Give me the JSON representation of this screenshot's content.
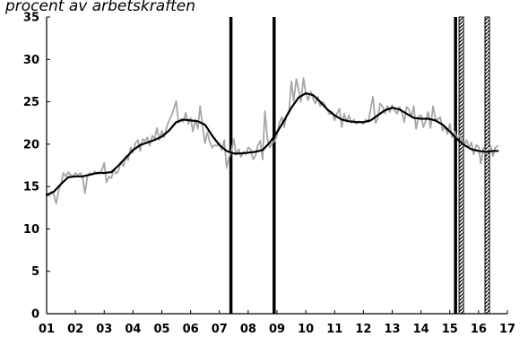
{
  "chart_data": {
    "type": "line",
    "title": "procent av arbetskraften",
    "xlabel": "",
    "ylabel": "",
    "ylim": [
      0,
      35
    ],
    "yticks": [
      0,
      5,
      10,
      15,
      20,
      25,
      30,
      35
    ],
    "xlim": [
      2001,
      2017
    ],
    "xtick_labels": [
      "01",
      "02",
      "03",
      "04",
      "05",
      "06",
      "07",
      "08",
      "09",
      "10",
      "11",
      "12",
      "13",
      "14",
      "15",
      "16",
      "17"
    ],
    "grid": false,
    "legend": "none",
    "colors": {
      "raw": "#a6a6a6",
      "trend": "#000000",
      "markers": "#000000"
    },
    "series": [
      {
        "role": "raw",
        "x": [
          2001.0,
          2001.08,
          2001.17,
          2001.25,
          2001.33,
          2001.42,
          2001.5,
          2001.58,
          2001.67,
          2001.75,
          2001.83,
          2001.92,
          2002.0,
          2002.08,
          2002.17,
          2002.25,
          2002.33,
          2002.42,
          2002.5,
          2002.58,
          2002.67,
          2002.75,
          2002.83,
          2002.92,
          2003.0,
          2003.08,
          2003.17,
          2003.25,
          2003.33,
          2003.42,
          2003.5,
          2003.58,
          2003.67,
          2003.75,
          2003.83,
          2003.92,
          2004.0,
          2004.08,
          2004.17,
          2004.25,
          2004.33,
          2004.42,
          2004.5,
          2004.58,
          2004.67,
          2004.75,
          2004.83,
          2004.92,
          2005.0,
          2005.08,
          2005.17,
          2005.25,
          2005.33,
          2005.42,
          2005.5,
          2005.58,
          2005.67,
          2005.75,
          2005.83,
          2005.92,
          2006.0,
          2006.08,
          2006.17,
          2006.25,
          2006.33,
          2006.42,
          2006.5,
          2006.58,
          2006.67,
          2006.75,
          2006.83,
          2006.92,
          2007.0,
          2007.08,
          2007.17,
          2007.25,
          2007.33,
          2007.42,
          2007.5,
          2007.58,
          2007.67,
          2007.75,
          2007.83,
          2007.92,
          2008.0,
          2008.08,
          2008.17,
          2008.25,
          2008.33,
          2008.42,
          2008.5,
          2008.58,
          2008.67,
          2008.75,
          2008.83,
          2008.92,
          2009.0,
          2009.08,
          2009.17,
          2009.25,
          2009.33,
          2009.42,
          2009.5,
          2009.58,
          2009.67,
          2009.75,
          2009.83,
          2009.92,
          2010.0,
          2010.08,
          2010.17,
          2010.25,
          2010.33,
          2010.42,
          2010.5,
          2010.58,
          2010.67,
          2010.75,
          2010.83,
          2010.92,
          2011.0,
          2011.08,
          2011.17,
          2011.25,
          2011.33,
          2011.42,
          2011.5,
          2011.58,
          2011.67,
          2011.75,
          2011.83,
          2011.92,
          2012.0,
          2012.08,
          2012.17,
          2012.25,
          2012.33,
          2012.42,
          2012.5,
          2012.58,
          2012.67,
          2012.75,
          2012.83,
          2012.92,
          2013.0,
          2013.08,
          2013.17,
          2013.25,
          2013.33,
          2013.42,
          2013.5,
          2013.58,
          2013.67,
          2013.75,
          2013.83,
          2013.92,
          2014.0,
          2014.08,
          2014.17,
          2014.25,
          2014.33,
          2014.42,
          2014.5,
          2014.58,
          2014.67,
          2014.75,
          2014.83,
          2014.92,
          2015.0,
          2015.08,
          2015.17,
          2015.25,
          2015.33,
          2015.42,
          2015.5,
          2015.58,
          2015.67,
          2015.75,
          2015.83,
          2015.92,
          2016.0,
          2016.08,
          2016.17,
          2016.25,
          2016.33,
          2016.42,
          2016.5,
          2016.58,
          2016.67
        ],
        "y": [
          14.2,
          13.9,
          14.4,
          14.1,
          13.0,
          14.6,
          15.3,
          16.6,
          16.2,
          16.7,
          16.4,
          16.2,
          16.6,
          16.3,
          16.6,
          16.1,
          14.2,
          16.3,
          16.6,
          16.4,
          16.8,
          16.5,
          16.6,
          16.9,
          17.8,
          15.5,
          16.2,
          16.0,
          17.0,
          16.5,
          16.9,
          17.9,
          17.4,
          18.6,
          18.1,
          19.6,
          19.0,
          20.1,
          20.5,
          19.2,
          20.6,
          20.4,
          20.8,
          19.8,
          21.0,
          20.6,
          21.9,
          20.5,
          21.6,
          20.8,
          22.0,
          22.8,
          23.3,
          24.2,
          25.1,
          22.5,
          23.0,
          22.6,
          23.7,
          22.4,
          23.1,
          21.5,
          22.9,
          21.8,
          24.5,
          22.0,
          20.1,
          21.4,
          20.2,
          19.6,
          19.9,
          19.8,
          20.1,
          19.3,
          20.5,
          17.2,
          18.4,
          19.2,
          20.6,
          18.7,
          19.4,
          18.5,
          19.1,
          18.8,
          19.6,
          19.4,
          18.2,
          18.6,
          19.8,
          20.4,
          18.2,
          23.9,
          20.6,
          19.6,
          20.1,
          20.4,
          21.0,
          22.5,
          23.2,
          22.0,
          23.4,
          24.0,
          27.4,
          25.1,
          27.7,
          26.5,
          25.0,
          27.8,
          26.0,
          25.2,
          26.2,
          25.4,
          24.8,
          25.6,
          24.5,
          25.0,
          24.6,
          24.0,
          23.5,
          23.8,
          22.8,
          23.6,
          24.2,
          22.0,
          23.6,
          22.6,
          23.4,
          22.5,
          22.9,
          22.4,
          22.7,
          22.6,
          22.4,
          22.9,
          22.6,
          24.1,
          25.6,
          22.5,
          23.0,
          24.8,
          24.4,
          23.6,
          24.5,
          23.8,
          24.6,
          24.0,
          23.6,
          24.4,
          23.8,
          22.6,
          24.4,
          24.1,
          23.2,
          24.5,
          21.8,
          23.3,
          23.4,
          22.0,
          22.8,
          23.8,
          21.9,
          24.5,
          23.0,
          22.9,
          23.2,
          21.6,
          22.1,
          21.2,
          22.4,
          20.8,
          21.5,
          20.6,
          21.0,
          20.4,
          19.8,
          20.5,
          19.6,
          20.2,
          18.8,
          19.9,
          19.7,
          17.7,
          19.6,
          18.9,
          19.2,
          19.8,
          18.6,
          19.6,
          19.8
        ]
      },
      {
        "role": "trend",
        "x": [
          2001.0,
          2001.25,
          2001.5,
          2001.75,
          2002.0,
          2002.25,
          2002.5,
          2002.75,
          2003.0,
          2003.25,
          2003.5,
          2003.75,
          2004.0,
          2004.25,
          2004.5,
          2004.75,
          2005.0,
          2005.25,
          2005.5,
          2005.75,
          2006.0,
          2006.25,
          2006.5,
          2006.75,
          2007.0,
          2007.25,
          2007.5,
          2007.75,
          2008.0,
          2008.25,
          2008.5,
          2008.75,
          2009.0,
          2009.25,
          2009.5,
          2009.75,
          2010.0,
          2010.25,
          2010.5,
          2010.75,
          2011.0,
          2011.25,
          2011.5,
          2011.75,
          2012.0,
          2012.25,
          2012.5,
          2012.75,
          2013.0,
          2013.25,
          2013.5,
          2013.75,
          2014.0,
          2014.25,
          2014.5,
          2014.75,
          2015.0,
          2015.25,
          2015.5,
          2015.75,
          2016.0,
          2016.25,
          2016.5,
          2016.67
        ],
        "y": [
          14.0,
          14.4,
          15.3,
          16.1,
          16.2,
          16.2,
          16.4,
          16.6,
          16.6,
          16.7,
          17.5,
          18.4,
          19.3,
          19.9,
          20.2,
          20.5,
          20.9,
          21.6,
          22.6,
          22.9,
          22.8,
          22.7,
          22.3,
          21.0,
          19.9,
          19.2,
          18.9,
          18.9,
          19.0,
          19.1,
          19.3,
          20.2,
          21.4,
          22.8,
          24.3,
          25.5,
          26.0,
          25.8,
          25.0,
          24.1,
          23.4,
          22.9,
          22.7,
          22.6,
          22.6,
          22.8,
          23.4,
          24.0,
          24.3,
          24.1,
          23.6,
          23.1,
          23.0,
          23.0,
          22.8,
          22.3,
          21.5,
          20.6,
          19.9,
          19.4,
          19.2,
          19.1,
          19.2,
          19.2
        ]
      }
    ],
    "vertical_markers": [
      {
        "x": 2007.4,
        "style": "solid"
      },
      {
        "x": 2008.9,
        "style": "solid"
      },
      {
        "x": 2015.2,
        "style": "solid"
      },
      {
        "x": 2015.4,
        "style": "hatched"
      },
      {
        "x": 2016.3,
        "style": "hatched"
      }
    ]
  }
}
